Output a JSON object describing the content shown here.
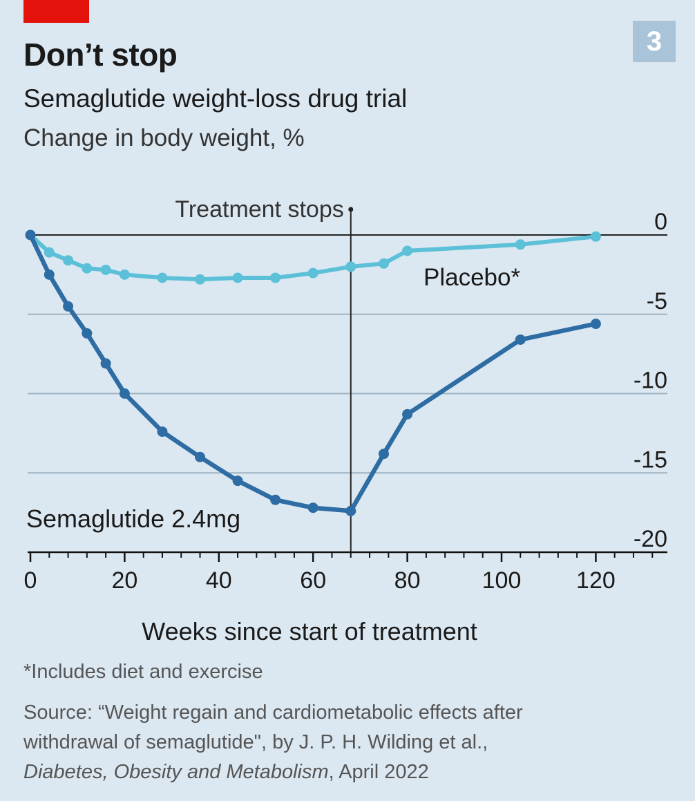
{
  "header": {
    "badge": "3"
  },
  "chart_data": {
    "type": "line",
    "title": "Don’t stop",
    "subtitle": "Semaglutide weight-loss drug trial",
    "ylabel": "Change in body weight, %",
    "xlabel": "Weeks since start of treatment",
    "xlim": [
      0,
      132
    ],
    "ylim": [
      -20,
      0
    ],
    "x_ticks": [
      0,
      20,
      40,
      60,
      80,
      100,
      120
    ],
    "x_minor_ticks": [
      4,
      8,
      12,
      16,
      24,
      28,
      32,
      36,
      44,
      48,
      52,
      56,
      64,
      68,
      72,
      76,
      84,
      88,
      92,
      96,
      104,
      108,
      112,
      116,
      124,
      128,
      132
    ],
    "y_ticks": [
      0,
      -5,
      -10,
      -15,
      -20
    ],
    "y_tick_labels": [
      "0",
      "-5",
      "-10",
      "-15",
      "-20"
    ],
    "grid": true,
    "annotations": [
      {
        "text": "Treatment stops",
        "x": 68
      }
    ],
    "series": [
      {
        "name": "Placebo*",
        "color": "#5bc0d8",
        "x": [
          0,
          4,
          8,
          12,
          16,
          20,
          28,
          36,
          44,
          52,
          60,
          68,
          75,
          80,
          104,
          120
        ],
        "y": [
          0,
          -1.1,
          -1.6,
          -2.1,
          -2.2,
          -2.5,
          -2.7,
          -2.8,
          -2.7,
          -2.7,
          -2.4,
          -2.0,
          -1.8,
          -1.0,
          -0.6,
          -0.1
        ]
      },
      {
        "name": "Semaglutide 2.4mg",
        "color": "#2e6ca4",
        "x": [
          0,
          4,
          8,
          12,
          16,
          20,
          28,
          36,
          44,
          52,
          60,
          68,
          75,
          80,
          104,
          120
        ],
        "y": [
          0,
          -2.5,
          -4.5,
          -6.2,
          -8.1,
          -10.0,
          -12.4,
          -14.0,
          -15.5,
          -16.7,
          -17.2,
          -17.4,
          -13.8,
          -11.3,
          -6.6,
          -5.6
        ]
      }
    ]
  },
  "notes": {
    "footnote": "*Includes diet and exercise",
    "source_line1": "Source: “Weight regain and cardiometabolic effects after",
    "source_line2": "withdrawal of semaglutide\", by J. P. H. Wilding et al.,",
    "journal": "Diabetes, Obesity and Metabolism",
    "date": ", April 2022"
  }
}
